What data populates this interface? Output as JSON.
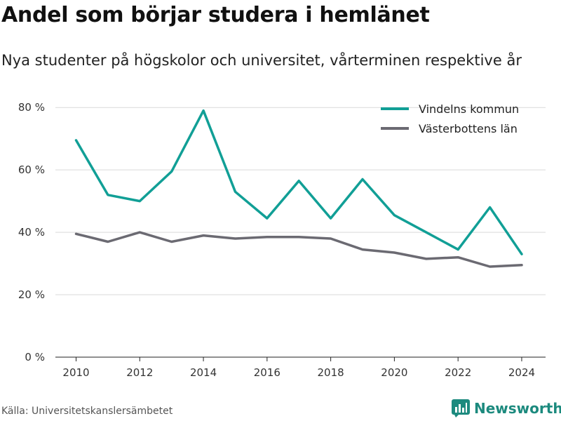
{
  "title": "Andel som börjar studera i hemlänet",
  "subtitle": "Nya studenter på högskolor och universitet, vårterminen respektive år",
  "source": "Källa: Universitetskanslersämbetet",
  "brand": {
    "name": "Newsworthy",
    "icon": "newsworthy-logo-icon",
    "color": "#1c8a7e"
  },
  "chart_data": {
    "type": "line",
    "title": "",
    "xlabel": "",
    "ylabel": "",
    "x": [
      2010,
      2011,
      2012,
      2013,
      2014,
      2015,
      2016,
      2017,
      2018,
      2019,
      2020,
      2021,
      2022,
      2023,
      2024
    ],
    "xticks": [
      2010,
      2012,
      2014,
      2016,
      2018,
      2020,
      2022,
      2024
    ],
    "xlim": [
      2009.35,
      2024.75
    ],
    "ylim": [
      0,
      85
    ],
    "yticks": [
      0,
      20,
      40,
      60,
      80
    ],
    "ytick_suffix": " %",
    "grid": true,
    "legend_position": "top-right",
    "series": [
      {
        "name": "Vindelns kommun",
        "color": "#119f96",
        "values": [
          69.5,
          52,
          50,
          59.5,
          79,
          53,
          44.5,
          56.5,
          44.5,
          57,
          45.5,
          40,
          34.5,
          48,
          33
        ]
      },
      {
        "name": "Västerbottens län",
        "color": "#6b6a72",
        "values": [
          39.5,
          37,
          40,
          37,
          39,
          38,
          38.5,
          38.5,
          38,
          34.5,
          33.5,
          31.5,
          32,
          29,
          29.5
        ]
      }
    ]
  }
}
